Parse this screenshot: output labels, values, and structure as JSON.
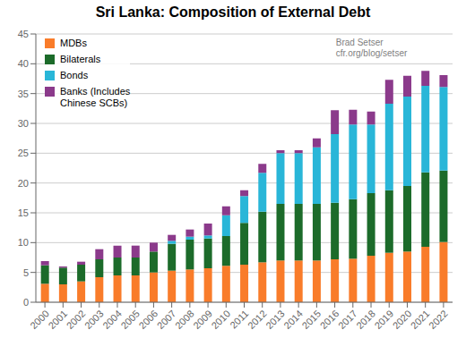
{
  "chart_data": {
    "type": "bar",
    "title": "Sri Lanka: Composition of External Debt",
    "annotation": "Brad Setser\ncfr.org/blog/setser",
    "categories": [
      "2000",
      "2001",
      "2002",
      "2003",
      "2004",
      "2005",
      "2006",
      "2007",
      "2008",
      "2009",
      "2010",
      "2011",
      "2012",
      "2013",
      "2014",
      "2015",
      "2016",
      "2017",
      "2018",
      "2019",
      "2020",
      "2021",
      "2022"
    ],
    "series": [
      {
        "name": "MDBs",
        "color": "#F97C2A",
        "values": [
          3.1,
          3.0,
          3.5,
          4.2,
          4.5,
          4.5,
          5.0,
          5.3,
          5.5,
          5.7,
          6.1,
          6.3,
          6.7,
          7.0,
          7.0,
          7.0,
          7.2,
          7.3,
          7.8,
          8.3,
          8.5,
          9.3,
          10.1
        ]
      },
      {
        "name": "Bilaterals",
        "color": "#1C6B2A",
        "values": [
          3.1,
          2.8,
          2.8,
          3.0,
          3.0,
          3.0,
          3.5,
          4.5,
          5.0,
          5.0,
          5.0,
          7.0,
          8.5,
          9.5,
          9.5,
          9.5,
          9.5,
          10.0,
          10.5,
          10.5,
          11.0,
          12.5,
          12.0
        ]
      },
      {
        "name": "Bonds",
        "color": "#29B6D8",
        "values": [
          0.0,
          0.0,
          0.0,
          0.0,
          0.0,
          0.0,
          0.0,
          0.5,
          0.5,
          0.5,
          3.5,
          4.5,
          6.5,
          8.5,
          8.5,
          9.5,
          11.5,
          12.5,
          11.5,
          14.5,
          15.0,
          14.5,
          14.0
        ]
      },
      {
        "name": "Banks (Includes\nChinese SCBs)",
        "color": "#8B3A8B",
        "values": [
          0.7,
          0.2,
          0.5,
          1.7,
          2.0,
          2.0,
          1.5,
          1.0,
          1.2,
          2.0,
          1.5,
          1.0,
          1.5,
          0.5,
          0.5,
          1.5,
          4.0,
          2.5,
          2.2,
          4.0,
          3.5,
          2.5,
          2.0
        ]
      }
    ],
    "stacked": true,
    "ylim": [
      0,
      45
    ],
    "yticks": [
      0,
      5,
      10,
      15,
      20,
      25,
      30,
      35,
      40,
      45
    ],
    "grid": true,
    "legend": "upper left"
  }
}
